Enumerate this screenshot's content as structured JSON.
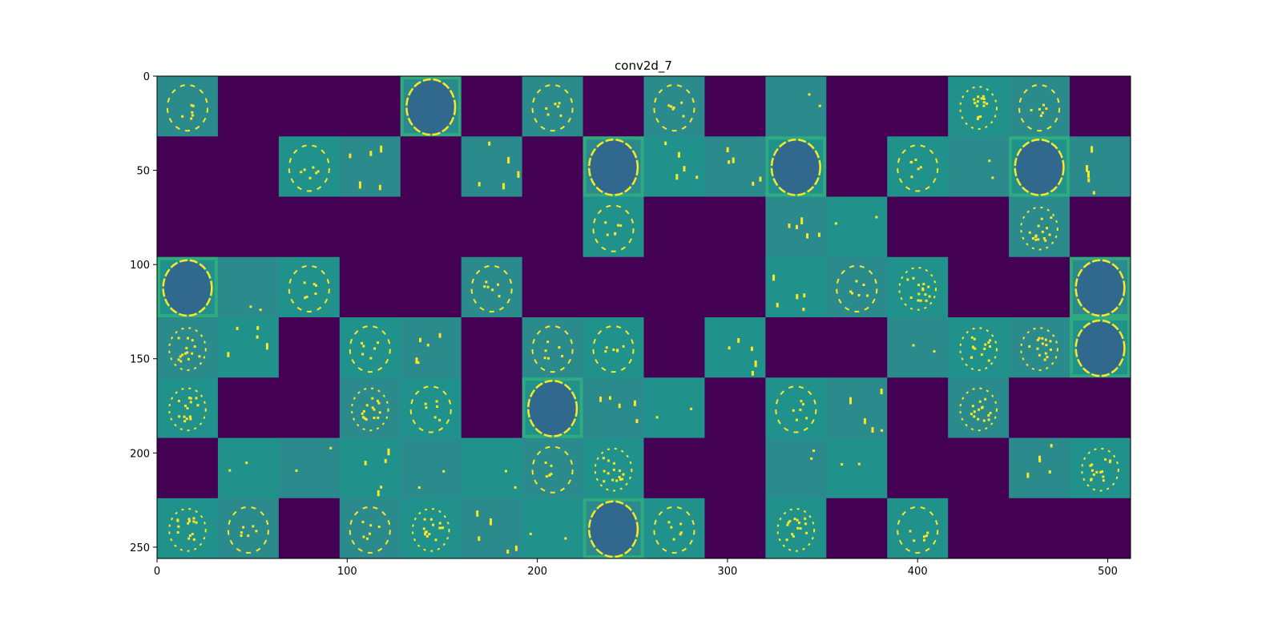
{
  "chart_data": {
    "type": "heatmap",
    "title": "conv2d_7",
    "xlabel": "",
    "ylabel": "",
    "xlim": [
      0,
      512
    ],
    "ylim": [
      256,
      0
    ],
    "x_ticks": [
      "0",
      "100",
      "200",
      "300",
      "400",
      "500"
    ],
    "y_ticks": [
      "0",
      "50",
      "100",
      "150",
      "200",
      "250"
    ],
    "grid": false,
    "legend": "none",
    "colormap": "viridis",
    "tile_size": 32,
    "grid_shape": [
      8,
      16
    ],
    "tile_types_legend": "0=dead (dark), 1=ring, 2=sparse, 3=dense-ring (large head), 4=uniform, 5=scattered",
    "tiles": [
      [
        1,
        0,
        0,
        0,
        3,
        0,
        1,
        0,
        1,
        0,
        4,
        0,
        0,
        5,
        1,
        0
      ],
      [
        0,
        0,
        1,
        2,
        0,
        2,
        0,
        3,
        2,
        2,
        3,
        0,
        1,
        4,
        3,
        2
      ],
      [
        0,
        0,
        0,
        0,
        0,
        0,
        0,
        1,
        0,
        0,
        2,
        4,
        0,
        0,
        5,
        0
      ],
      [
        3,
        4,
        1,
        0,
        0,
        1,
        0,
        0,
        0,
        0,
        2,
        1,
        5,
        0,
        0,
        3
      ],
      [
        5,
        2,
        0,
        1,
        2,
        0,
        1,
        1,
        0,
        2,
        0,
        0,
        4,
        5,
        5,
        3
      ],
      [
        5,
        0,
        0,
        5,
        1,
        0,
        3,
        2,
        4,
        0,
        1,
        2,
        0,
        5,
        0,
        0
      ],
      [
        0,
        4,
        4,
        2,
        4,
        4,
        1,
        5,
        0,
        0,
        4,
        4,
        0,
        0,
        2,
        5
      ],
      [
        5,
        1,
        0,
        1,
        5,
        2,
        4,
        3,
        1,
        0,
        5,
        0,
        1,
        0,
        0,
        0
      ]
    ],
    "colors": {
      "dead": "#440154",
      "background": "#21918c",
      "background_alt": "#2a8a8c",
      "dark_blob": "#31688e",
      "green": "#35b779",
      "highlight": "#fde725"
    }
  }
}
